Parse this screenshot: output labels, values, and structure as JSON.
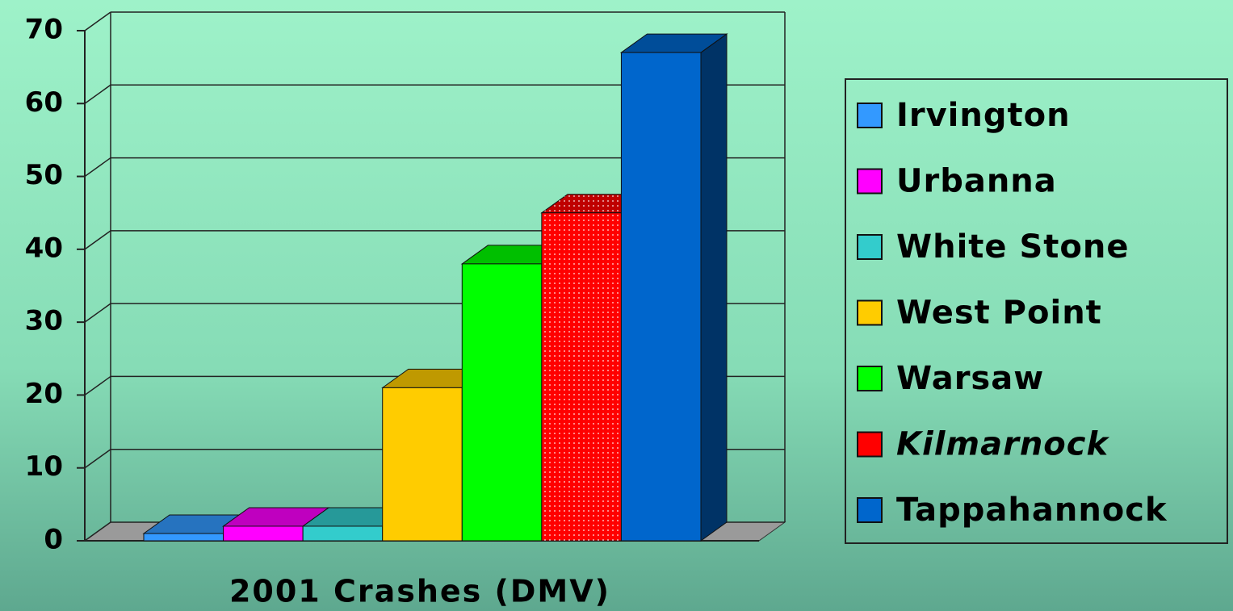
{
  "chart_data": {
    "type": "bar3d",
    "categories": [
      "2001 Crashes (DMV)"
    ],
    "series": [
      {
        "name": "Irvington",
        "color": "#3399ff",
        "values": [
          1
        ]
      },
      {
        "name": "Urbanna",
        "color": "#ff00ff",
        "values": [
          2
        ]
      },
      {
        "name": "White Stone",
        "color": "#33cccc",
        "values": [
          2
        ]
      },
      {
        "name": "West Point",
        "color": "#ffcc00",
        "values": [
          21
        ]
      },
      {
        "name": "Warsaw",
        "color": "#00ff00",
        "values": [
          38
        ]
      },
      {
        "name": "Kilmarnock",
        "color": "#ff0000",
        "pattern": "dotted",
        "italic": true,
        "values": [
          45
        ]
      },
      {
        "name": "Tappahannock",
        "color": "#0066cc",
        "values": [
          67
        ]
      }
    ],
    "ylim": [
      0,
      70
    ],
    "yticks": [
      0,
      10,
      20,
      30,
      40,
      50,
      60,
      70
    ],
    "grid": true,
    "legend": "right"
  }
}
